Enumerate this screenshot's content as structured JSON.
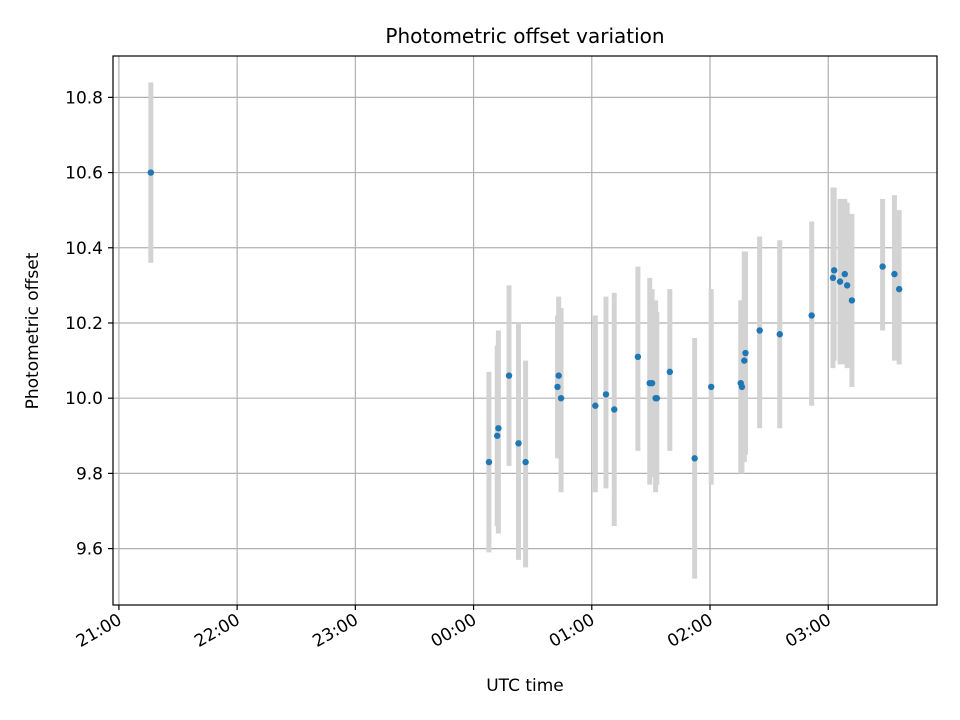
{
  "chart_data": {
    "type": "scatter",
    "title": "Photometric offset variation",
    "xlabel": "UTC time",
    "ylabel": "Photometric offset",
    "x_unit": "hours (21:00 on first night = 21, next-day times > 24)",
    "xlim": [
      20.95,
      27.92
    ],
    "ylim": [
      9.45,
      10.91
    ],
    "grid": true,
    "x_ticks": [
      {
        "value": 21,
        "label": "21:00"
      },
      {
        "value": 22,
        "label": "22:00"
      },
      {
        "value": 23,
        "label": "23:00"
      },
      {
        "value": 24,
        "label": "00:00"
      },
      {
        "value": 25,
        "label": "01:00"
      },
      {
        "value": 26,
        "label": "02:00"
      },
      {
        "value": 27,
        "label": "03:00"
      }
    ],
    "y_ticks": [
      {
        "value": 9.6,
        "label": "9.6"
      },
      {
        "value": 9.8,
        "label": "9.8"
      },
      {
        "value": 10.0,
        "label": "10.0"
      },
      {
        "value": 10.2,
        "label": "10.2"
      },
      {
        "value": 10.4,
        "label": "10.4"
      },
      {
        "value": 10.6,
        "label": "10.6"
      },
      {
        "value": 10.8,
        "label": "10.8"
      }
    ],
    "colors": {
      "point": "#1f77b4",
      "errorbar": "#d3d3d3",
      "grid": "#b0b0b0",
      "axis": "#000000"
    },
    "series": [
      {
        "points": [
          {
            "x": 21.27,
            "y": 10.6,
            "lo": 10.36,
            "hi": 10.84
          },
          {
            "x": 24.13,
            "y": 9.83,
            "lo": 9.59,
            "hi": 10.07
          },
          {
            "x": 24.2,
            "y": 9.9,
            "lo": 9.66,
            "hi": 10.14
          },
          {
            "x": 24.21,
            "y": 9.92,
            "lo": 9.64,
            "hi": 10.18
          },
          {
            "x": 24.3,
            "y": 10.06,
            "lo": 9.82,
            "hi": 10.3
          },
          {
            "x": 24.38,
            "y": 9.88,
            "lo": 9.57,
            "hi": 10.2
          },
          {
            "x": 24.44,
            "y": 9.83,
            "lo": 9.55,
            "hi": 10.1
          },
          {
            "x": 24.71,
            "y": 10.03,
            "lo": 9.84,
            "hi": 10.22
          },
          {
            "x": 24.72,
            "y": 10.06,
            "lo": 9.87,
            "hi": 10.27
          },
          {
            "x": 24.74,
            "y": 10.0,
            "lo": 9.75,
            "hi": 10.24
          },
          {
            "x": 25.03,
            "y": 9.98,
            "lo": 9.75,
            "hi": 10.22
          },
          {
            "x": 25.12,
            "y": 10.01,
            "lo": 9.76,
            "hi": 10.27
          },
          {
            "x": 25.19,
            "y": 9.97,
            "lo": 9.66,
            "hi": 10.28
          },
          {
            "x": 25.39,
            "y": 10.11,
            "lo": 9.86,
            "hi": 10.35
          },
          {
            "x": 25.49,
            "y": 10.04,
            "lo": 9.77,
            "hi": 10.32
          },
          {
            "x": 25.51,
            "y": 10.04,
            "lo": 9.79,
            "hi": 10.29
          },
          {
            "x": 25.54,
            "y": 10.0,
            "lo": 9.75,
            "hi": 10.26
          },
          {
            "x": 25.55,
            "y": 10.0,
            "lo": 9.77,
            "hi": 10.23
          },
          {
            "x": 25.66,
            "y": 10.07,
            "lo": 9.86,
            "hi": 10.29
          },
          {
            "x": 25.87,
            "y": 9.84,
            "lo": 9.52,
            "hi": 10.16
          },
          {
            "x": 26.01,
            "y": 10.03,
            "lo": 9.77,
            "hi": 10.29
          },
          {
            "x": 26.26,
            "y": 10.04,
            "lo": 9.8,
            "hi": 10.26
          },
          {
            "x": 26.27,
            "y": 10.03,
            "lo": 9.8,
            "hi": 10.26
          },
          {
            "x": 26.29,
            "y": 10.1,
            "lo": 9.83,
            "hi": 10.39
          },
          {
            "x": 26.3,
            "y": 10.12,
            "lo": 9.85,
            "hi": 10.39
          },
          {
            "x": 26.42,
            "y": 10.18,
            "lo": 9.92,
            "hi": 10.43
          },
          {
            "x": 26.59,
            "y": 10.17,
            "lo": 9.92,
            "hi": 10.42
          },
          {
            "x": 26.86,
            "y": 10.22,
            "lo": 9.98,
            "hi": 10.47
          },
          {
            "x": 27.04,
            "y": 10.32,
            "lo": 10.08,
            "hi": 10.56
          },
          {
            "x": 27.05,
            "y": 10.34,
            "lo": 10.1,
            "hi": 10.56
          },
          {
            "x": 27.1,
            "y": 10.31,
            "lo": 10.09,
            "hi": 10.53
          },
          {
            "x": 27.14,
            "y": 10.33,
            "lo": 10.09,
            "hi": 10.53
          },
          {
            "x": 27.16,
            "y": 10.3,
            "lo": 10.08,
            "hi": 10.52
          },
          {
            "x": 27.2,
            "y": 10.26,
            "lo": 10.03,
            "hi": 10.49
          },
          {
            "x": 27.46,
            "y": 10.35,
            "lo": 10.18,
            "hi": 10.53
          },
          {
            "x": 27.56,
            "y": 10.33,
            "lo": 10.1,
            "hi": 10.54
          },
          {
            "x": 27.6,
            "y": 10.29,
            "lo": 10.09,
            "hi": 10.5
          }
        ]
      }
    ]
  }
}
